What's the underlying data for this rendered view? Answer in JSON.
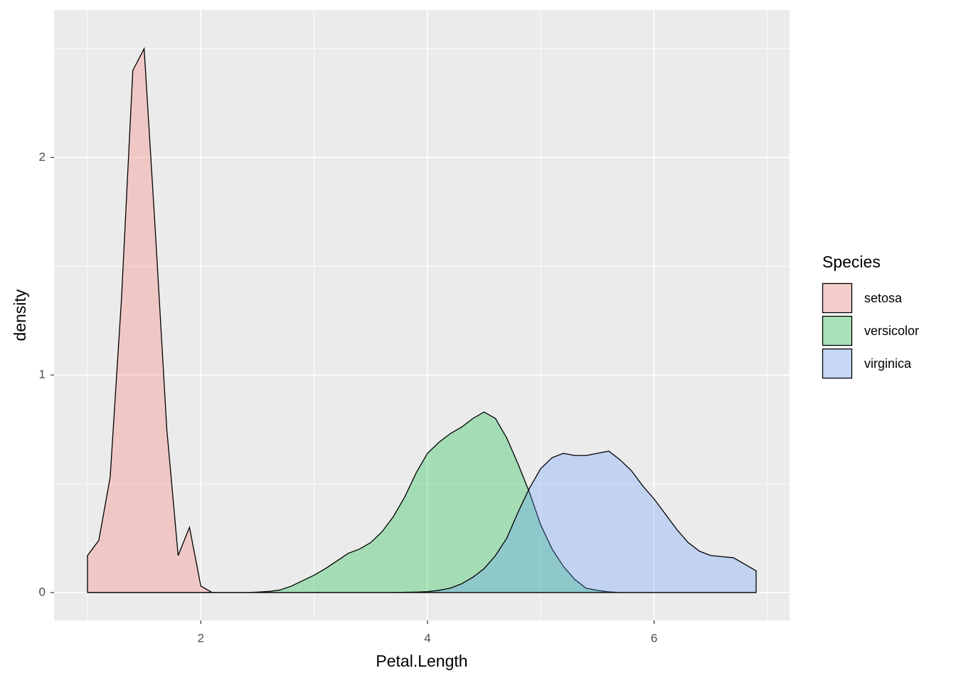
{
  "chart_data": {
    "type": "density",
    "x_label": "Petal.Length",
    "y_label": "density",
    "legend_title": "Species",
    "legend": "right",
    "grid": true,
    "alpha": 0.3,
    "outline_color": "#000000",
    "xlim": [
      0.705,
      7.195
    ],
    "ylim": [
      -0.128,
      2.678
    ],
    "xticks": [
      2,
      4,
      6
    ],
    "yticks": [
      0,
      1,
      2
    ],
    "xminor": [
      1,
      3,
      5,
      7
    ],
    "yminor": [
      0.5,
      1.5,
      2.5
    ],
    "x": [
      1,
      1.1,
      1.2,
      1.3,
      1.4,
      1.5,
      1.6,
      1.7,
      1.8,
      1.9,
      2,
      2.1,
      2.2,
      2.3,
      2.4,
      2.5,
      2.6,
      2.7,
      2.8,
      2.9,
      3,
      3.1,
      3.2,
      3.3,
      3.4,
      3.5,
      3.6,
      3.7,
      3.8,
      3.9,
      4,
      4.1,
      4.2,
      4.3,
      4.4,
      4.5,
      4.6,
      4.7,
      4.8,
      4.9,
      5,
      5.1,
      5.2,
      5.3,
      5.4,
      5.5,
      5.6,
      5.7,
      5.8,
      5.9,
      6,
      6.1,
      6.2,
      6.3,
      6.4,
      6.5,
      6.6,
      6.7,
      6.8,
      6.9
    ],
    "series": [
      {
        "name": "setosa",
        "color": "#F8766D",
        "values": [
          0.17,
          0.24,
          0.53,
          1.35,
          2.4,
          2.5,
          1.65,
          0.75,
          0.17,
          0.3,
          0.03,
          0,
          0,
          0,
          0,
          0,
          0,
          0,
          0,
          0,
          0,
          0,
          0,
          0,
          0,
          0,
          0,
          0,
          0,
          0,
          0,
          0,
          0,
          0,
          0,
          0,
          0,
          0,
          0,
          0,
          0,
          0,
          0,
          0,
          0,
          0,
          0,
          0,
          0,
          0,
          0,
          0,
          0,
          0,
          0,
          0,
          0,
          0,
          0,
          0
        ]
      },
      {
        "name": "versicolor",
        "color": "#00BA38",
        "values": [
          0,
          0,
          0,
          0,
          0,
          0,
          0,
          0,
          0,
          0,
          0,
          0,
          0,
          0,
          0,
          0.002,
          0.005,
          0.012,
          0.03,
          0.055,
          0.08,
          0.11,
          0.145,
          0.18,
          0.2,
          0.23,
          0.28,
          0.35,
          0.44,
          0.55,
          0.64,
          0.69,
          0.73,
          0.76,
          0.8,
          0.83,
          0.8,
          0.71,
          0.59,
          0.46,
          0.31,
          0.2,
          0.12,
          0.06,
          0.02,
          0.01,
          0.003,
          0,
          0,
          0,
          0,
          0,
          0,
          0,
          0,
          0,
          0,
          0,
          0,
          0
        ]
      },
      {
        "name": "virginica",
        "color": "#619CFF",
        "values": [
          0,
          0,
          0,
          0,
          0,
          0,
          0,
          0,
          0,
          0,
          0,
          0,
          0,
          0,
          0,
          0,
          0,
          0,
          0,
          0,
          0,
          0,
          0,
          0,
          0,
          0,
          0,
          0,
          0.001,
          0.002,
          0.004,
          0.01,
          0.02,
          0.04,
          0.07,
          0.11,
          0.17,
          0.25,
          0.37,
          0.48,
          0.57,
          0.62,
          0.64,
          0.63,
          0.63,
          0.64,
          0.65,
          0.61,
          0.56,
          0.49,
          0.43,
          0.36,
          0.29,
          0.23,
          0.19,
          0.17,
          0.165,
          0.16,
          0.13,
          0.1
        ]
      }
    ]
  }
}
